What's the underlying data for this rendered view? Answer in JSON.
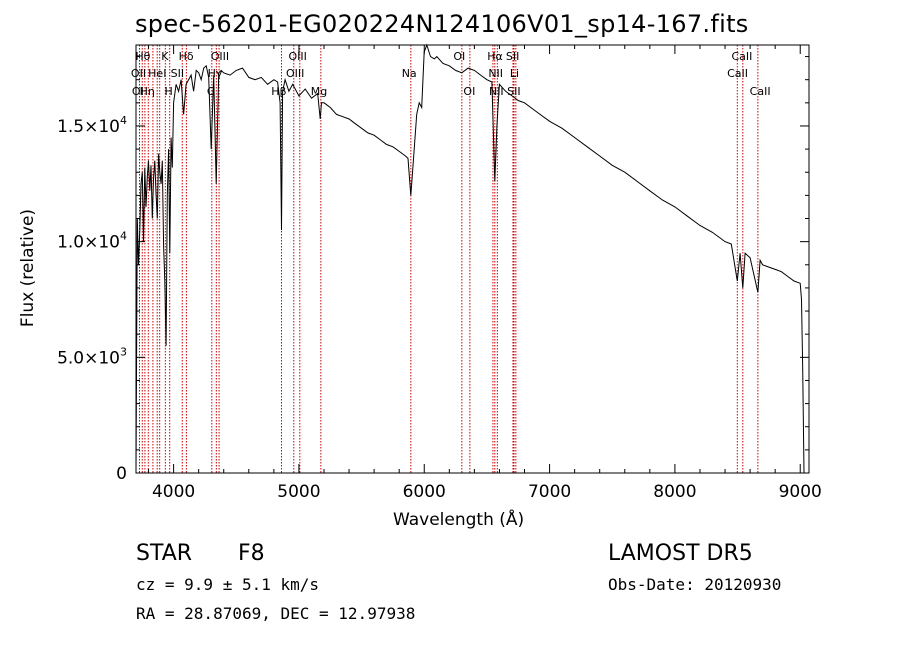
{
  "chart_data": {
    "type": "line",
    "title": "spec-56201-EG020224N124106V01_sp14-167.fits",
    "xlabel": "Wavelength (Å)",
    "ylabel": "Flux (relative)",
    "xlim": [
      3700,
      9070
    ],
    "ylim": [
      0,
      18500
    ],
    "x_ticks": [
      {
        "value": 4000,
        "label": "4000"
      },
      {
        "value": 5000,
        "label": "5000"
      },
      {
        "value": 6000,
        "label": "6000"
      },
      {
        "value": 7000,
        "label": "7000"
      },
      {
        "value": 8000,
        "label": "8000"
      },
      {
        "value": 9000,
        "label": "9000"
      }
    ],
    "y_ticks": [
      {
        "value": 0,
        "label": "0",
        "exp": ""
      },
      {
        "value": 5000,
        "label": "5.0×10",
        "exp": "3"
      },
      {
        "value": 10000,
        "label": "1.0×10",
        "exp": "4"
      },
      {
        "value": 15000,
        "label": "1.5×10",
        "exp": "4"
      }
    ],
    "grid": false,
    "line_color": "#000000",
    "marker_color": "#cc0000",
    "series": [
      {
        "x": [
          3700,
          3710,
          3720,
          3730,
          3740,
          3750,
          3760,
          3770,
          3780,
          3790,
          3800,
          3810,
          3820,
          3830,
          3840,
          3850,
          3860,
          3870,
          3880,
          3890,
          3900,
          3910,
          3920,
          3930,
          3940,
          3950,
          3960,
          3970,
          3980,
          3990,
          4000,
          4020,
          4040,
          4060,
          4080,
          4100,
          4120,
          4140,
          4160,
          4180,
          4200,
          4220,
          4240,
          4260,
          4280,
          4300,
          4320,
          4340,
          4360,
          4380,
          4400,
          4450,
          4500,
          4550,
          4600,
          4650,
          4700,
          4750,
          4800,
          4830,
          4850,
          4861,
          4870,
          4890,
          4920,
          4950,
          5000,
          5050,
          5100,
          5150,
          5170,
          5180,
          5200,
          5250,
          5300,
          5350,
          5400,
          5450,
          5500,
          5550,
          5600,
          5650,
          5700,
          5750,
          5800,
          5850,
          5870,
          5893,
          5900,
          5920,
          5940,
          5960,
          5980,
          6000,
          6020,
          6050,
          6080,
          6100,
          6150,
          6200,
          6250,
          6300,
          6350,
          6400,
          6450,
          6500,
          6540,
          6563,
          6580,
          6600,
          6650,
          6700,
          6750,
          6800,
          6900,
          7000,
          7100,
          7200,
          7300,
          7400,
          7500,
          7600,
          7700,
          7800,
          7900,
          8000,
          8100,
          8200,
          8300,
          8400,
          8450,
          8498,
          8520,
          8542,
          8560,
          8600,
          8662,
          8680,
          8700,
          8750,
          8800,
          8850,
          8900,
          8950,
          9000,
          9010,
          9020,
          9030
        ],
        "y": [
          0,
          11000,
          9000,
          10500,
          12500,
          13000,
          10000,
          13200,
          11500,
          12800,
          13500,
          12200,
          13300,
          11000,
          12700,
          13500,
          12000,
          11000,
          13800,
          13000,
          12500,
          13500,
          9800,
          8300,
          5500,
          12000,
          14000,
          9500,
          14500,
          13200,
          16000,
          16800,
          16500,
          17000,
          15500,
          16800,
          17000,
          17200,
          16500,
          17400,
          17300,
          17000,
          17500,
          17600,
          17100,
          14000,
          17200,
          12500,
          17300,
          17400,
          17300,
          17200,
          17400,
          17500,
          17100,
          17000,
          17100,
          16800,
          17000,
          16900,
          16000,
          10500,
          16500,
          17000,
          16500,
          16800,
          16300,
          16600,
          16200,
          16400,
          15300,
          16000,
          16000,
          15800,
          15500,
          15400,
          15300,
          15100,
          14900,
          14700,
          14600,
          14400,
          14200,
          14100,
          13900,
          13700,
          13600,
          12000,
          12500,
          14000,
          15500,
          16000,
          15800,
          18200,
          18500,
          18000,
          17900,
          18000,
          17700,
          17600,
          17400,
          17300,
          17500,
          17400,
          17200,
          17000,
          16900,
          12600,
          15000,
          16800,
          16500,
          16300,
          16100,
          16000,
          15600,
          15200,
          14900,
          14500,
          14100,
          13700,
          13300,
          13000,
          12600,
          12200,
          11800,
          11500,
          11100,
          10700,
          10400,
          10000,
          9900,
          8300,
          9500,
          8000,
          9500,
          9300,
          7800,
          9200,
          9000,
          8900,
          8800,
          8700,
          8500,
          8300,
          8200,
          7500,
          4500,
          0
        ]
      }
    ],
    "line_markers": [
      {
        "x": 3728,
        "label": "OII"
      },
      {
        "x": 3750,
        "label": "Hθ"
      },
      {
        "x": 3771,
        "label": "Hη"
      },
      {
        "x": 3798,
        "label": "Hη"
      },
      {
        "x": 3835,
        "label": "Hη"
      },
      {
        "x": 3869,
        "label": "OII"
      },
      {
        "x": 3889,
        "label": "HeI"
      },
      {
        "x": 3934,
        "label": "K"
      },
      {
        "x": 3969,
        "label": "H"
      },
      {
        "x": 4069,
        "label": "SII"
      },
      {
        "x": 4102,
        "label": "Hδ"
      },
      {
        "x": 4305,
        "label": "G"
      },
      {
        "x": 4341,
        "label": "Hγ"
      },
      {
        "x": 4363,
        "label": "OIII"
      },
      {
        "x": 4861,
        "label": "Hβ"
      },
      {
        "x": 4959,
        "label": "OIII"
      },
      {
        "x": 5007,
        "label": "OIII"
      },
      {
        "x": 5175,
        "label": "Mg"
      },
      {
        "x": 5893,
        "label": "Na"
      },
      {
        "x": 6300,
        "label": "OI"
      },
      {
        "x": 6364,
        "label": "OI"
      },
      {
        "x": 6548,
        "label": "NII"
      },
      {
        "x": 6563,
        "label": "Hα"
      },
      {
        "x": 6583,
        "label": "NII"
      },
      {
        "x": 6708,
        "label": "Li"
      },
      {
        "x": 6716,
        "label": "SII"
      },
      {
        "x": 6731,
        "label": "SII"
      },
      {
        "x": 8498,
        "label": "CaII"
      },
      {
        "x": 8542,
        "label": "CaII"
      },
      {
        "x": 8662,
        "label": "CaII"
      }
    ],
    "line_labels": [
      {
        "x": 3755,
        "row": 1,
        "text": "Hθ"
      },
      {
        "x": 3930,
        "row": 1,
        "text": "K"
      },
      {
        "x": 4100,
        "row": 1,
        "text": "Hδ"
      },
      {
        "x": 4370,
        "row": 1,
        "text": "OIII"
      },
      {
        "x": 4990,
        "row": 1,
        "text": "OIII"
      },
      {
        "x": 6280,
        "row": 1,
        "text": "OI"
      },
      {
        "x": 6565,
        "row": 1,
        "text": "Hα"
      },
      {
        "x": 6705,
        "row": 1,
        "text": "SII"
      },
      {
        "x": 8535,
        "row": 1,
        "text": "CaII"
      },
      {
        "x": 3720,
        "row": 2,
        "text": "OII"
      },
      {
        "x": 3870,
        "row": 2,
        "text": "HeI"
      },
      {
        "x": 4030,
        "row": 2,
        "text": "SII"
      },
      {
        "x": 4330,
        "row": 2,
        "text": "Hγ"
      },
      {
        "x": 4970,
        "row": 2,
        "text": "OIII"
      },
      {
        "x": 5880,
        "row": 2,
        "text": "Na"
      },
      {
        "x": 6570,
        "row": 2,
        "text": "NII"
      },
      {
        "x": 6720,
        "row": 2,
        "text": "Li"
      },
      {
        "x": 8500,
        "row": 2,
        "text": "CaII"
      },
      {
        "x": 3715,
        "row": 3,
        "text": "OI"
      },
      {
        "x": 3790,
        "row": 3,
        "text": "Hη"
      },
      {
        "x": 3960,
        "row": 3,
        "text": "H"
      },
      {
        "x": 4300,
        "row": 3,
        "text": "G"
      },
      {
        "x": 4840,
        "row": 3,
        "text": "Hβ"
      },
      {
        "x": 5160,
        "row": 3,
        "text": "Mg"
      },
      {
        "x": 6360,
        "row": 3,
        "text": "OI"
      },
      {
        "x": 6575,
        "row": 3,
        "text": "NII"
      },
      {
        "x": 6715,
        "row": 3,
        "text": "SII"
      },
      {
        "x": 8680,
        "row": 3,
        "text": "CaII"
      }
    ]
  },
  "footer": {
    "class_label": "STAR",
    "subclass": "F8",
    "survey": "LAMOST DR5",
    "cz": "cz = 9.9 ± 5.1 km/s",
    "obs_date": "Obs-Date: 20120930",
    "coords": "RA =  28.87069, DEC =  12.97938"
  }
}
